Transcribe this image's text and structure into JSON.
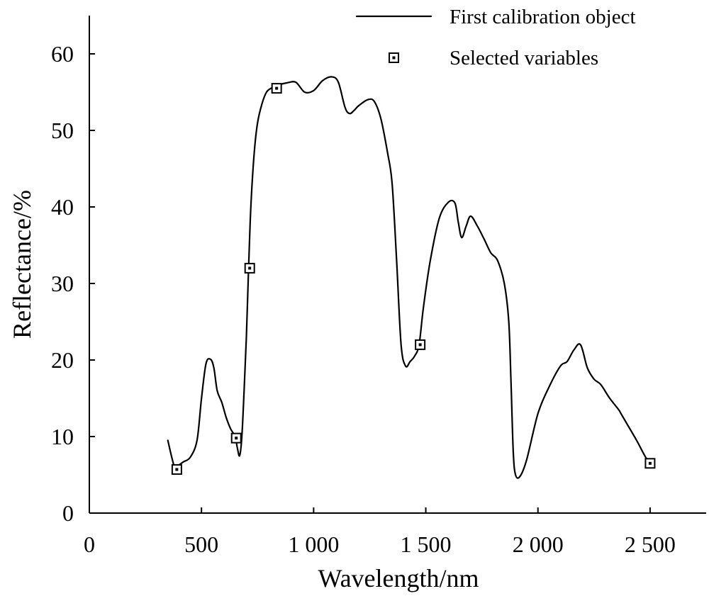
{
  "chart_data": {
    "type": "line",
    "xlabel": "Wavelength/nm",
    "ylabel": "Reflectance/%",
    "xlim": [
      0,
      2750
    ],
    "ylim": [
      0,
      65
    ],
    "xticks": [
      0,
      500,
      1000,
      1500,
      2000,
      2500
    ],
    "xtick_labels": [
      "0",
      "500",
      "1 000",
      "1 500",
      "2 000",
      "2 500"
    ],
    "yticks": [
      0,
      10,
      20,
      30,
      40,
      50,
      60
    ],
    "ytick_labels": [
      "0",
      "10",
      "20",
      "30",
      "40",
      "50",
      "60"
    ],
    "grid": false,
    "legend_position": "top-right",
    "series": [
      {
        "name": "First calibration object",
        "kind": "line",
        "x": [
          350,
          380,
          400,
          420,
          450,
          480,
          500,
          520,
          540,
          555,
          570,
          590,
          610,
          630,
          650,
          660,
          670,
          680,
          690,
          700,
          710,
          720,
          735,
          750,
          770,
          790,
          810,
          830,
          850,
          880,
          920,
          960,
          1000,
          1040,
          1080,
          1110,
          1140,
          1160,
          1180,
          1200,
          1240,
          1270,
          1300,
          1330,
          1350,
          1370,
          1390,
          1410,
          1430,
          1450,
          1470,
          1490,
          1520,
          1560,
          1600,
          1630,
          1645,
          1660,
          1680,
          1700,
          1730,
          1760,
          1790,
          1820,
          1850,
          1870,
          1880,
          1890,
          1900,
          1920,
          1950,
          2000,
          2050,
          2100,
          2130,
          2160,
          2190,
          2220,
          2250,
          2280,
          2320,
          2360,
          2370,
          2400,
          2440,
          2480,
          2500
        ],
        "y": [
          9.5,
          6.0,
          6.3,
          6.7,
          7.3,
          9.5,
          15.0,
          19.5,
          20.1,
          19.0,
          16.0,
          14.5,
          12.5,
          11.0,
          10.0,
          8.5,
          7.5,
          10.0,
          16.0,
          23.0,
          32.0,
          40.0,
          47.0,
          51.0,
          53.5,
          55.0,
          55.5,
          55.8,
          56.0,
          56.2,
          56.3,
          55.0,
          55.2,
          56.5,
          57.0,
          56.3,
          53.0,
          52.2,
          52.6,
          53.2,
          54.0,
          53.8,
          51.5,
          47.0,
          43.0,
          33.0,
          22.0,
          19.2,
          19.8,
          20.5,
          22.0,
          27.0,
          33.0,
          38.5,
          40.6,
          40.5,
          38.0,
          36.0,
          37.5,
          38.8,
          37.5,
          35.8,
          34.0,
          33.0,
          30.0,
          25.0,
          17.0,
          8.0,
          5.0,
          4.8,
          7.0,
          13.0,
          16.5,
          19.2,
          19.8,
          21.3,
          22.0,
          19.0,
          17.5,
          16.8,
          15.0,
          13.5,
          13.0,
          11.5,
          9.5,
          7.3,
          6.5
        ]
      },
      {
        "name": "Selected variables",
        "kind": "marker",
        "x": [
          390,
          655,
          715,
          835,
          1475,
          2500
        ],
        "y": [
          5.7,
          9.8,
          32.0,
          55.5,
          22.0,
          6.5
        ]
      }
    ]
  }
}
